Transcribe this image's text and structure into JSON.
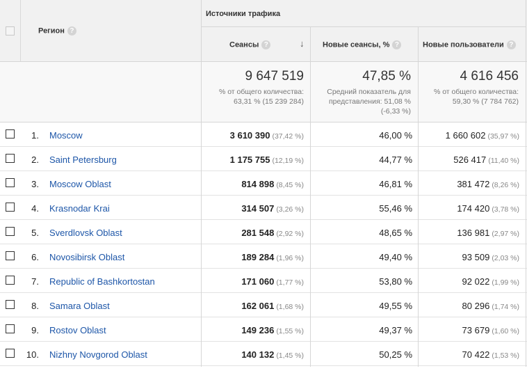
{
  "header": {
    "region_label": "Регион",
    "traffic_sources_label": "Источники трафика",
    "sessions_label": "Сеансы",
    "new_sessions_label": "Новые сеансы, %",
    "new_users_label": "Новые пользователи",
    "help_glyph": "?",
    "sort_glyph": "↓"
  },
  "summary": {
    "sessions": {
      "value": "9 647 519",
      "line1": "% от общего количества:",
      "line2": "63,31 % (15 239 284)"
    },
    "new_sessions": {
      "value": "47,85 %",
      "line1": "Средний показатель для",
      "line2": "представления: 51,08 %",
      "line3": "(-6,33 %)"
    },
    "new_users": {
      "value": "4 616 456",
      "line1": "% от общего количества:",
      "line2": "59,30 % (7 784 762)"
    }
  },
  "rows": [
    {
      "num": "1.",
      "region": "Moscow",
      "sessions": "3 610 390",
      "sessions_pct": "(37,42 %)",
      "new_sessions": "46,00 %",
      "new_users": "1 660 602",
      "new_users_pct": "(35,97 %)"
    },
    {
      "num": "2.",
      "region": "Saint Petersburg",
      "sessions": "1 175 755",
      "sessions_pct": "(12,19 %)",
      "new_sessions": "44,77 %",
      "new_users": "526 417",
      "new_users_pct": "(11,40 %)"
    },
    {
      "num": "3.",
      "region": "Moscow Oblast",
      "sessions": "814 898",
      "sessions_pct": "(8,45 %)",
      "new_sessions": "46,81 %",
      "new_users": "381 472",
      "new_users_pct": "(8,26 %)"
    },
    {
      "num": "4.",
      "region": "Krasnodar Krai",
      "sessions": "314 507",
      "sessions_pct": "(3,26 %)",
      "new_sessions": "55,46 %",
      "new_users": "174 420",
      "new_users_pct": "(3,78 %)"
    },
    {
      "num": "5.",
      "region": "Sverdlovsk Oblast",
      "sessions": "281 548",
      "sessions_pct": "(2,92 %)",
      "new_sessions": "48,65 %",
      "new_users": "136 981",
      "new_users_pct": "(2,97 %)"
    },
    {
      "num": "6.",
      "region": "Novosibirsk Oblast",
      "sessions": "189 284",
      "sessions_pct": "(1,96 %)",
      "new_sessions": "49,40 %",
      "new_users": "93 509",
      "new_users_pct": "(2,03 %)"
    },
    {
      "num": "7.",
      "region": "Republic of Bashkortostan",
      "sessions": "171 060",
      "sessions_pct": "(1,77 %)",
      "new_sessions": "53,80 %",
      "new_users": "92 022",
      "new_users_pct": "(1,99 %)"
    },
    {
      "num": "8.",
      "region": "Samara Oblast",
      "sessions": "162 061",
      "sessions_pct": "(1,68 %)",
      "new_sessions": "49,55 %",
      "new_users": "80 296",
      "new_users_pct": "(1,74 %)"
    },
    {
      "num": "9.",
      "region": "Rostov Oblast",
      "sessions": "149 236",
      "sessions_pct": "(1,55 %)",
      "new_sessions": "49,37 %",
      "new_users": "73 679",
      "new_users_pct": "(1,60 %)"
    },
    {
      "num": "10.",
      "region": "Nizhny Novgorod Oblast",
      "sessions": "140 132",
      "sessions_pct": "(1,45 %)",
      "new_sessions": "50,25 %",
      "new_users": "70 422",
      "new_users_pct": "(1,53 %)"
    }
  ],
  "colors": {
    "link": "#1d56a8",
    "header_bg": "#f1f1f1",
    "summary_bg": "#f8f8f8"
  }
}
